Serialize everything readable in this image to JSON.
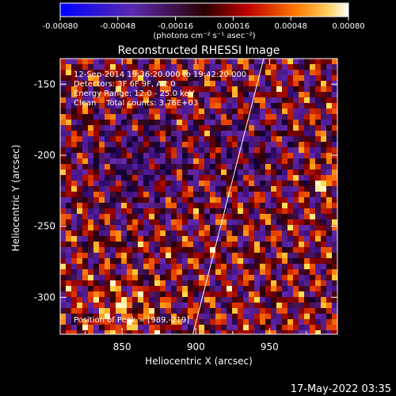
{
  "chart_data": {
    "type": "heatmap",
    "title": "Reconstructed RHESSI Image",
    "xlabel": "Heliocentric X (arcsec)",
    "ylabel": "Heliocentric Y (arcsec)",
    "xlim": [
      808,
      996
    ],
    "ylim": [
      -326,
      -132
    ],
    "x_ticks": [
      850,
      900,
      950
    ],
    "y_ticks": [
      -150,
      -200,
      -250,
      -300
    ],
    "colorbar": {
      "colormap": "hot",
      "range": [
        -0.0008,
        0.0008
      ],
      "ticks": [
        "-0.00080",
        "-0.00048",
        "-0.00016",
        "0.00016",
        "0.00048",
        "0.00080"
      ],
      "label": "(photons cm⁻² s⁻¹ asec⁻²)"
    },
    "annotations": {
      "time_range": "12-Sep-2014 19:36:20.000 to 19:42:20.000",
      "detectors": "Detectors: 3F 6F 9F, Att 0",
      "energy_range": "Energy Range: 12.0 - 25.0 keV",
      "algorithm_counts": "Clean    Total counts: 3.76E+03",
      "peak": "Position of Peak = [989,-219]"
    },
    "limb_line": {
      "x": [
        898,
        946
      ],
      "y": [
        -326,
        -132
      ]
    },
    "peak_position": [
      989,
      -219
    ],
    "timestamp": "17-May-2022 03:35"
  }
}
